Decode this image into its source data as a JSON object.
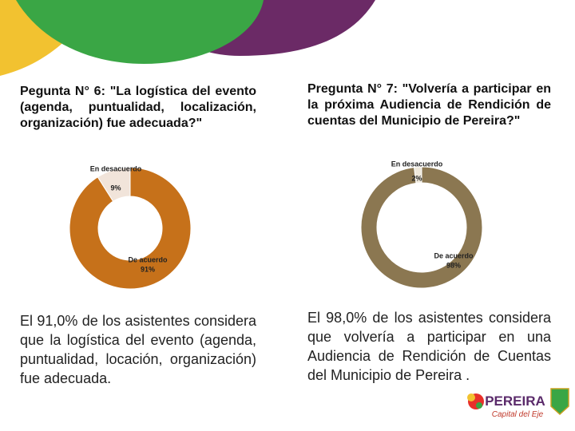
{
  "chart_data": [
    {
      "type": "pie",
      "title": "Pegunta N° 6: \"La logística del evento (agenda, puntualidad, localización, organización) fue adecuada?\"",
      "categories": [
        "En desacuerdo",
        "De acuerdo"
      ],
      "values": [
        9,
        91
      ],
      "value_labels": [
        "9%",
        "91%"
      ],
      "colors": [
        "#f1e4da",
        "#c6711a"
      ]
    },
    {
      "type": "pie",
      "title": "Pregunta N° 7: \"Volvería a participar en la próxima Audiencia de Rendición de cuentas del Municipio de Pereira?\"",
      "categories": [
        "En desacuerdo",
        "De acuerdo"
      ],
      "values": [
        2,
        98
      ],
      "value_labels": [
        "2%",
        "98%"
      ],
      "colors": [
        "#efe9dc",
        "#8b7751"
      ]
    }
  ],
  "paragraphs": [
    "El 91,0% de los asistentes considera que la logística del evento (agenda, puntualidad, locación, organización) fue adecuada.",
    "El 98,0% de los asistentes considera que volvería a participar en una Audiencia de Rendición de Cuentas del Municipio de Pereira ."
  ],
  "logo": {
    "name": "PEREIRA",
    "tagline": "Capital del Eje"
  }
}
